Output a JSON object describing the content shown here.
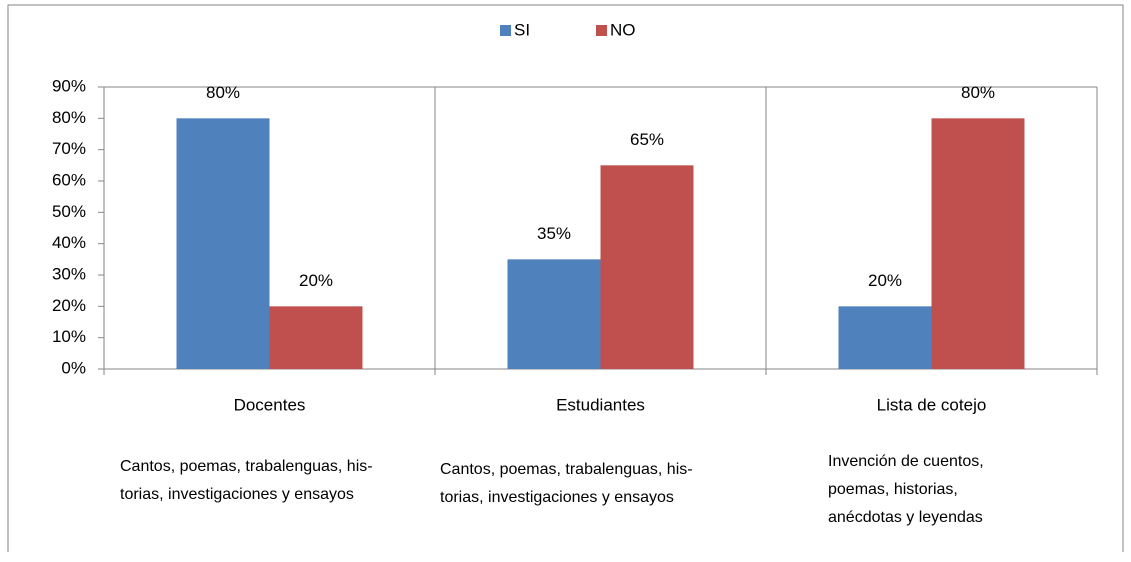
{
  "chart_data": {
    "type": "bar",
    "categories": [
      "Docentes",
      "Estudiantes",
      "Lista de cotejo"
    ],
    "series": [
      {
        "name": "SI",
        "color": "#4f81bd",
        "values": [
          80,
          35,
          20
        ],
        "value_labels": [
          "80%",
          "35%",
          "20%"
        ]
      },
      {
        "name": "NO",
        "color": "#c0504d",
        "values": [
          20,
          65,
          80
        ],
        "value_labels": [
          "20%",
          "65%",
          "80%"
        ]
      }
    ],
    "ylim": [
      0,
      90
    ],
    "yticks": [
      {
        "value": 0,
        "label": "0%"
      },
      {
        "value": 10,
        "label": "10%"
      },
      {
        "value": 20,
        "label": "20%"
      },
      {
        "value": 30,
        "label": "30%"
      },
      {
        "value": 40,
        "label": "40%"
      },
      {
        "value": 50,
        "label": "50%"
      },
      {
        "value": 60,
        "label": "60%"
      },
      {
        "value": 70,
        "label": "70%"
      },
      {
        "value": 80,
        "label": "80%"
      },
      {
        "value": 90,
        "label": "90%"
      }
    ],
    "legend": "top",
    "annotations": [
      [
        "Cantos, poemas, trabalenguas, his-",
        "torias, investigaciones y ensayos"
      ],
      [
        "Cantos, poemas, trabalenguas, his-",
        "torias, investigaciones y ensayos"
      ],
      [
        "Invención de cuentos,",
        "poemas, historias,",
        "anécdotas y leyendas"
      ]
    ]
  }
}
